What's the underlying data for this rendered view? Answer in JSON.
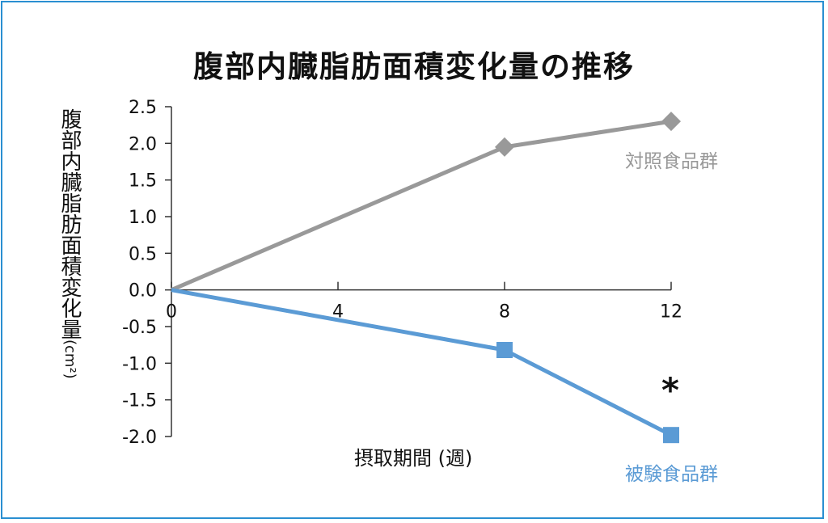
{
  "chart_data": {
    "type": "line",
    "title": "腹部内臓脂肪面積変化量の推移",
    "ylabel": "腹部内臓脂肪面積変化量",
    "ylabel_unit": "(cm²)",
    "xlabel": "摂取期間 (週)",
    "x": [
      0,
      8,
      12
    ],
    "x_ticks": [
      "0",
      "4",
      "8",
      "12"
    ],
    "xlim": [
      0,
      12
    ],
    "ylim": [
      -2.0,
      2.5
    ],
    "y_ticks": [
      "2.5",
      "2.0",
      "1.5",
      "1.0",
      "0.5",
      "0.0",
      "-0.5",
      "-1.0",
      "-1.5",
      "-2.0"
    ],
    "grid": false,
    "series": [
      {
        "name": "対照食品群",
        "values": [
          0,
          1.95,
          2.3
        ],
        "color": "#999999",
        "marker": "diamond"
      },
      {
        "name": "被験食品群",
        "values": [
          0,
          -0.82,
          -1.98
        ],
        "color": "#5b9bd5",
        "marker": "square"
      }
    ],
    "annotation": "*"
  }
}
